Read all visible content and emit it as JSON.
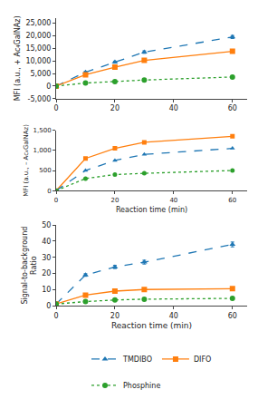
{
  "chart_data": [
    {
      "type": "line",
      "ylabel": "MFI (a.u., + Ac₄GalNAz)",
      "x": [
        0,
        10,
        20,
        30,
        60
      ],
      "series": [
        {
          "name": "TMDIBO",
          "marker": "triangle-up",
          "line_style": "dash",
          "values": [
            0,
            5500,
            9500,
            13500,
            19500
          ],
          "errors": [
            200,
            300,
            400,
            500,
            600
          ]
        },
        {
          "name": "DIFO",
          "marker": "square",
          "line_style": "solid",
          "values": [
            0,
            4500,
            7500,
            10200,
            13800
          ],
          "errors": [
            200,
            300,
            400,
            500,
            500
          ]
        },
        {
          "name": "Phosphine",
          "marker": "circle",
          "line_style": "dot",
          "values": [
            0,
            1200,
            1800,
            2400,
            3600
          ],
          "errors": [
            100,
            100,
            150,
            150,
            200
          ]
        }
      ],
      "xlim": [
        0,
        65
      ],
      "xticks": [
        0,
        20,
        40,
        60
      ],
      "ylim": [
        -5000,
        27000
      ],
      "yticks": [
        {
          "value": -5000,
          "label": "-5,000"
        },
        0,
        {
          "value": 5000,
          "label": "5,000"
        },
        {
          "value": 10000,
          "label": "10,000"
        },
        {
          "value": 15000,
          "label": "15,000"
        },
        {
          "value": 20000,
          "label": "20,000"
        },
        {
          "value": 25000,
          "label": "25,000"
        }
      ],
      "grid": false
    },
    {
      "type": "line",
      "xlabel": "Reaction time (min)",
      "ylabel": "MFI (a.u., – Ac₄GalNAz)",
      "x": [
        0,
        10,
        20,
        30,
        60
      ],
      "series": [
        {
          "name": "DIFO",
          "marker": "square",
          "line_style": "solid",
          "values": [
            0,
            800,
            1050,
            1200,
            1350
          ]
        },
        {
          "name": "TMDIBO",
          "marker": "triangle-up",
          "line_style": "dash",
          "values": [
            0,
            500,
            750,
            900,
            1050
          ]
        },
        {
          "name": "Phosphine",
          "marker": "circle",
          "line_style": "dot",
          "values": [
            0,
            300,
            400,
            430,
            500
          ]
        }
      ],
      "xlim": [
        0,
        65
      ],
      "xticks": [
        0,
        20,
        40,
        60
      ],
      "ylim": [
        0,
        1500
      ],
      "yticks": [
        0,
        500,
        {
          "value": 1000,
          "label": "1,000"
        },
        {
          "value": 1500,
          "label": "1,500"
        }
      ],
      "grid": false
    },
    {
      "type": "line",
      "xlabel": "Reaction time (min)",
      "ylabel": "Signal-to-background\nRatio",
      "x": [
        0,
        10,
        20,
        30,
        60
      ],
      "series": [
        {
          "name": "TMDIBO",
          "marker": "triangle-up",
          "line_style": "dash",
          "values": [
            1,
            19,
            24,
            27,
            38
          ],
          "errors": [
            0.1,
            0.8,
            1.0,
            1.2,
            1.5
          ]
        },
        {
          "name": "DIFO",
          "marker": "square",
          "line_style": "solid",
          "values": [
            1,
            6.5,
            9,
            10,
            10.5
          ],
          "errors": [
            0.1,
            0.4,
            0.4,
            0.4,
            0.4
          ]
        },
        {
          "name": "Phosphine",
          "marker": "circle",
          "line_style": "dot",
          "values": [
            1,
            2.5,
            3.5,
            4,
            4.5
          ],
          "errors": [
            0.05,
            0.2,
            0.2,
            0.2,
            0.2
          ]
        }
      ],
      "xlim": [
        0,
        65
      ],
      "xticks": [
        0,
        20,
        40,
        60
      ],
      "ylim": [
        0,
        50
      ],
      "yticks": [
        0,
        10,
        20,
        30,
        40,
        50
      ],
      "grid": false,
      "legend": "bottom"
    }
  ]
}
